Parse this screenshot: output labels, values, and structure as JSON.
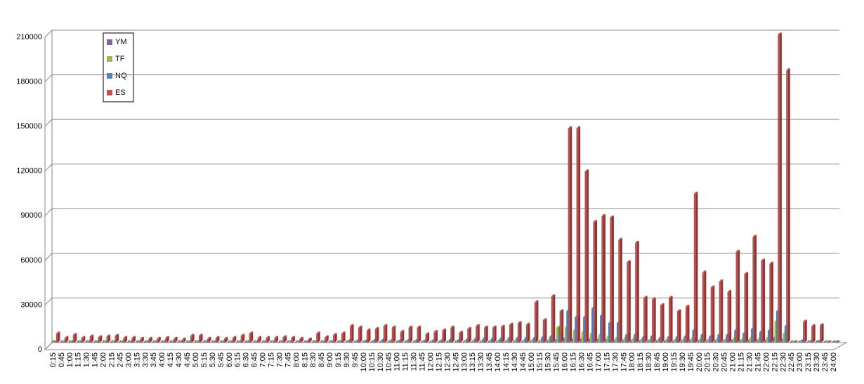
{
  "chart_data": {
    "type": "bar3d",
    "categories": [
      "0:15",
      "0:45",
      "1:00",
      "1:15",
      "1:30",
      "1:45",
      "2:00",
      "2:15",
      "2:45",
      "3:00",
      "3:15",
      "3:30",
      "3:45",
      "4:00",
      "4:15",
      "4:30",
      "4:45",
      "5:00",
      "5:15",
      "5:30",
      "5:45",
      "6:00",
      "6:15",
      "6:30",
      "6:45",
      "7:00",
      "7:15",
      "7:30",
      "7:45",
      "8:00",
      "8:15",
      "8:30",
      "8:45",
      "9:00",
      "9:15",
      "9:30",
      "9:45",
      "10:00",
      "10:15",
      "10:30",
      "10:45",
      "11:00",
      "11:15",
      "11:30",
      "11:45",
      "12:00",
      "12:15",
      "12:30",
      "12:45",
      "13:00",
      "13:15",
      "13:30",
      "13:45",
      "14:00",
      "14:15",
      "14:30",
      "14:45",
      "15:00",
      "15:15",
      "15:30",
      "15:45",
      "16:00",
      "16:15",
      "16:30",
      "16:45",
      "17:00",
      "17:15",
      "17:30",
      "17:45",
      "18:00",
      "18:15",
      "18:30",
      "18:45",
      "19:00",
      "19:15",
      "19:30",
      "19:45",
      "20:00",
      "20:15",
      "20:30",
      "20:45",
      "21:00",
      "21:15",
      "21:30",
      "21:45",
      "22:00",
      "22:15",
      "22:30",
      "22:45",
      "23:00",
      "23:15",
      "23:30",
      "23:45",
      "24:00"
    ],
    "series": [
      {
        "name": "YM",
        "color": "#8064a2",
        "values": [
          100,
          100,
          100,
          100,
          100,
          100,
          100,
          100,
          100,
          100,
          100,
          100,
          100,
          100,
          100,
          100,
          100,
          100,
          100,
          100,
          100,
          100,
          100,
          100,
          100,
          100,
          100,
          100,
          100,
          100,
          100,
          100,
          100,
          100,
          100,
          100,
          100,
          100,
          100,
          100,
          100,
          100,
          100,
          100,
          100,
          100,
          100,
          100,
          100,
          100,
          300,
          300,
          300,
          300,
          400,
          400,
          400,
          500,
          500,
          800,
          1500,
          2500,
          2000,
          2000,
          2000,
          1800,
          1500,
          1200,
          1000,
          1000,
          800,
          800,
          700,
          700,
          700,
          800,
          1200,
          900,
          800,
          900,
          900,
          1200,
          1000,
          1300,
          1100,
          1200,
          3000,
          1800,
          0,
          200,
          200,
          200,
          0,
          0
        ]
      },
      {
        "name": "TF",
        "color": "#9bbb59",
        "values": [
          200,
          200,
          200,
          200,
          200,
          200,
          200,
          200,
          200,
          200,
          200,
          200,
          200,
          200,
          200,
          200,
          200,
          200,
          200,
          200,
          200,
          200,
          200,
          200,
          200,
          200,
          200,
          200,
          200,
          200,
          200,
          200,
          200,
          300,
          300,
          500,
          500,
          400,
          500,
          500,
          500,
          400,
          500,
          500,
          400,
          500,
          500,
          500,
          500,
          600,
          800,
          800,
          800,
          800,
          1000,
          1000,
          1000,
          1200,
          1500,
          2000,
          10000,
          10000,
          8000,
          7000,
          6000,
          5000,
          4000,
          3000,
          2500,
          2000,
          1500,
          1500,
          1500,
          1500,
          1500,
          2000,
          2500,
          2000,
          2000,
          2000,
          2000,
          2500,
          2000,
          3000,
          2500,
          3000,
          14000,
          6000,
          0,
          500,
          300,
          300,
          0,
          0
        ]
      },
      {
        "name": "NQ",
        "color": "#4f81bd",
        "values": [
          500,
          300,
          400,
          300,
          300,
          300,
          400,
          300,
          300,
          300,
          300,
          300,
          300,
          300,
          300,
          300,
          400,
          400,
          300,
          300,
          300,
          300,
          400,
          500,
          300,
          300,
          300,
          300,
          300,
          300,
          300,
          500,
          400,
          600,
          800,
          1500,
          1500,
          1200,
          1500,
          1800,
          1500,
          1200,
          1500,
          1500,
          1200,
          1500,
          1500,
          1800,
          1500,
          2000,
          2500,
          2500,
          2500,
          2500,
          3000,
          3000,
          3000,
          3000,
          3500,
          4000,
          5000,
          21000,
          17000,
          17000,
          23000,
          18000,
          13000,
          13000,
          5000,
          5000,
          3500,
          4000,
          3000,
          3500,
          3500,
          4000,
          8000,
          5000,
          4000,
          5000,
          5000,
          8000,
          6000,
          9000,
          7000,
          8000,
          21000,
          11000,
          0,
          1500,
          1000,
          1000,
          0,
          0
        ]
      },
      {
        "name": "ES",
        "color": "#c0504d",
        "values": [
          6000,
          3000,
          5000,
          3000,
          4000,
          3500,
          4000,
          4500,
          3000,
          3000,
          2500,
          2500,
          2500,
          3000,
          2500,
          2000,
          4500,
          4500,
          2500,
          3000,
          2500,
          3000,
          4500,
          6000,
          3000,
          3000,
          3000,
          3500,
          3000,
          2500,
          2000,
          6000,
          3500,
          5000,
          6000,
          11000,
          10000,
          8000,
          9000,
          11000,
          10000,
          7000,
          10000,
          10000,
          5500,
          7000,
          8000,
          10000,
          6500,
          9000,
          11000,
          10000,
          10000,
          10500,
          12000,
          13000,
          12000,
          27000,
          15000,
          31000,
          21000,
          144000,
          144000,
          115000,
          81000,
          85000,
          84000,
          69000,
          54000,
          67000,
          30000,
          29000,
          25000,
          30000,
          21000,
          24000,
          100000,
          47000,
          37000,
          41000,
          34000,
          61000,
          46000,
          71000,
          55000,
          53000,
          207000,
          183000,
          0,
          14000,
          11000,
          11500,
          0,
          0
        ]
      }
    ],
    "ylim": [
      0,
      210000
    ],
    "yticks": [
      0,
      30000,
      60000,
      90000,
      120000,
      150000,
      180000,
      210000
    ],
    "grid": true
  }
}
